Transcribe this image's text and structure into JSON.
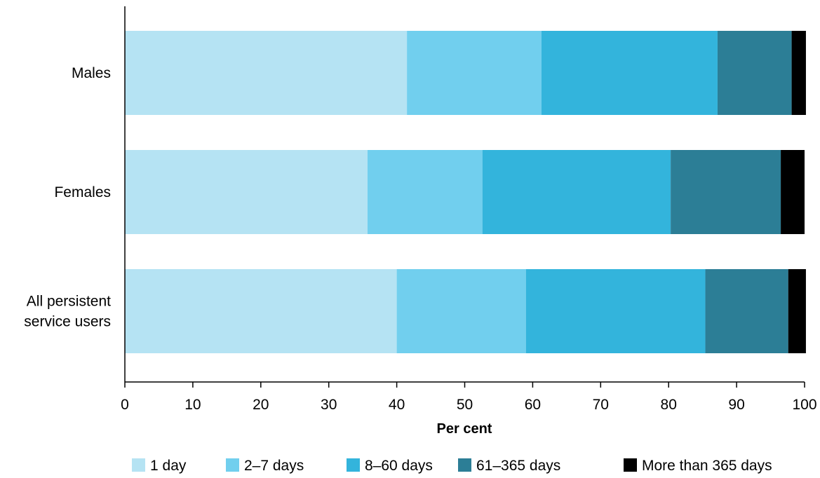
{
  "chart_data": {
    "type": "bar",
    "orientation": "horizontal",
    "stacked": true,
    "categories": [
      "Males",
      "Females",
      "All persistent service users"
    ],
    "category_lines": [
      [
        "Males"
      ],
      [
        "Females"
      ],
      [
        "All persistent",
        "service users"
      ]
    ],
    "series": [
      {
        "name": "1 day",
        "color": "#b5e3f3",
        "values": [
          41.5,
          35.7,
          40.0
        ]
      },
      {
        "name": "2–7 days",
        "color": "#71cfee",
        "values": [
          19.8,
          16.9,
          19.0
        ]
      },
      {
        "name": "8–60 days",
        "color": "#33b4dc",
        "values": [
          25.9,
          27.7,
          26.4
        ]
      },
      {
        "name": "61–365 days",
        "color": "#2c7e96",
        "values": [
          10.9,
          16.2,
          12.2
        ]
      },
      {
        "name": "More than 365 days",
        "color": "#000000",
        "values": [
          2.1,
          3.5,
          2.6
        ]
      }
    ],
    "xlabel": "Per cent",
    "ylabel": "",
    "xlim": [
      0,
      100
    ],
    "xticks": [
      0,
      10,
      20,
      30,
      40,
      50,
      60,
      70,
      80,
      90,
      100
    ],
    "grid": false,
    "legend_position": "bottom"
  }
}
